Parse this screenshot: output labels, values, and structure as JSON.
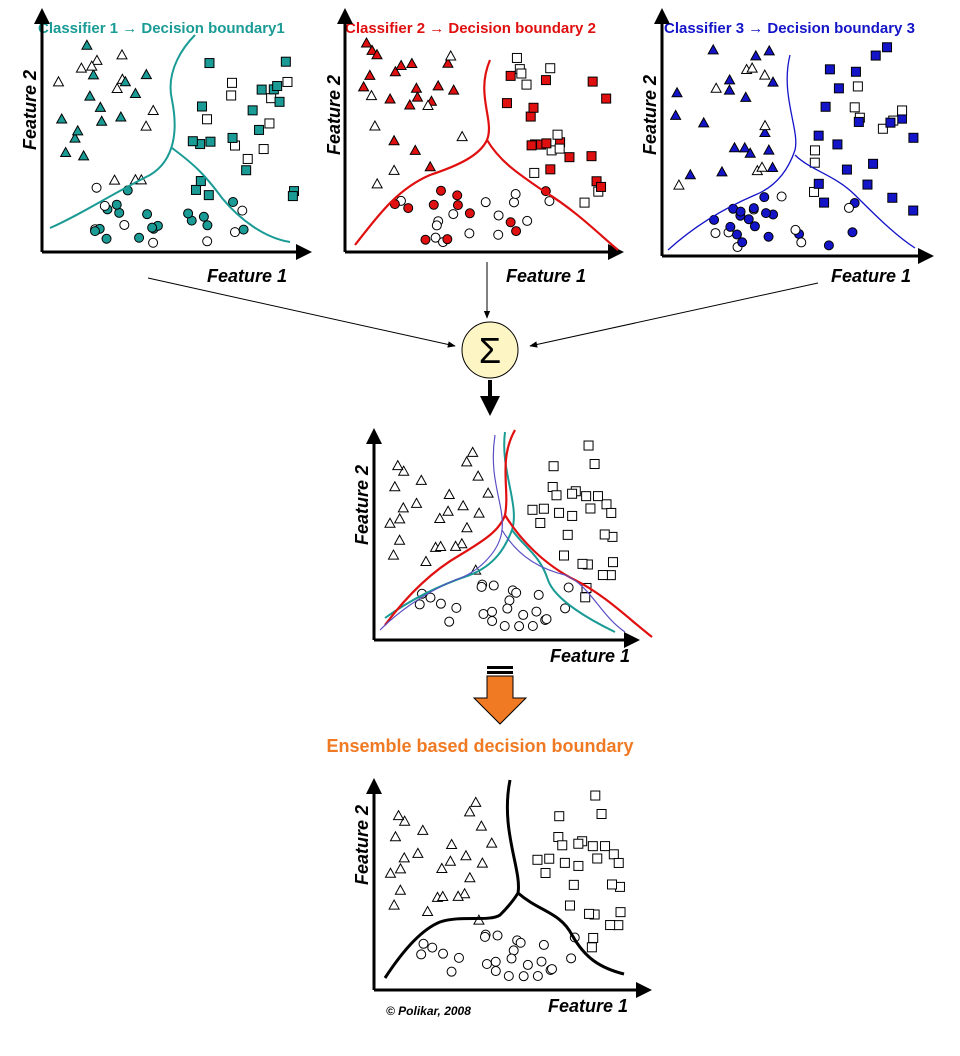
{
  "titles": {
    "c1": "Classifier 1 → Decision boundary1",
    "c2": "Classifier 2 → Decision boundary 2",
    "c3": "Classifier 3 → Decision boundary 3",
    "ensemble": "Ensemble based decision boundary"
  },
  "axis": {
    "x": "Feature 1",
    "y": "Feature 2"
  },
  "sum_symbol": "Σ",
  "credit": "© Polikar, 2008",
  "colors": {
    "c1": "#1a9b95",
    "c2": "#e01010",
    "c3": "#1414c8",
    "sigma_fill": "#fdf6c4",
    "arrow_orange": "#f07a24",
    "ensemble_title": "#f07a24",
    "combined_thin": "#5b4fc4"
  }
}
